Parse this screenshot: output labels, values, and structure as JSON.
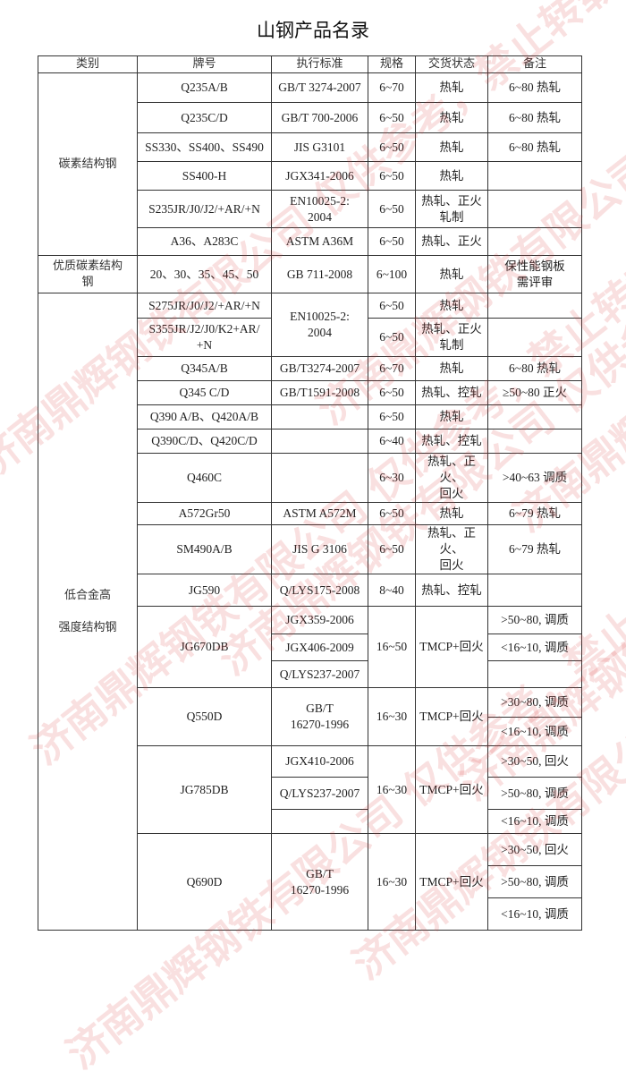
{
  "title": "山钢产品名录",
  "watermark": "济南鼎辉钢铁有限公司 仅供参考，禁止转载！",
  "table": {
    "headers": [
      "类别",
      "牌号",
      "执行标准",
      "规格",
      "交货状态",
      "备注"
    ],
    "rows": [
      [
        {
          "text": "碳素结构钢",
          "rs": 6,
          "cat": true
        },
        {
          "text": "Q235A/B"
        },
        {
          "text": "GB/T 3274-2007"
        },
        {
          "text": "6~70"
        },
        {
          "text": "热轧"
        },
        {
          "text": "6~80 热轧"
        }
      ],
      [
        {
          "text": "Q235C/D"
        },
        {
          "text": "GB/T 700-2006"
        },
        {
          "text": "6~50"
        },
        {
          "text": "热轧"
        },
        {
          "text": "6~80 热轧"
        }
      ],
      [
        {
          "text": "SS330、SS400、SS490"
        },
        {
          "text": "JIS G3101"
        },
        {
          "text": "6~50"
        },
        {
          "text": "热轧"
        },
        {
          "text": "6~80 热轧"
        }
      ],
      [
        {
          "text": "SS400-H"
        },
        {
          "text": "JGX341-2006"
        },
        {
          "text": "6~50"
        },
        {
          "text": "热轧"
        },
        {
          "text": ""
        }
      ],
      [
        {
          "text": "S235JR/J0/J2/+AR/+N"
        },
        {
          "text": "EN10025-2:\n2004"
        },
        {
          "text": "6~50"
        },
        {
          "text": "热轧、正火\n轧制"
        },
        {
          "text": ""
        }
      ],
      [
        {
          "text": "A36、A283C"
        },
        {
          "text": "ASTM A36M"
        },
        {
          "text": "6~50"
        },
        {
          "text": "热轧、正火"
        },
        {
          "text": ""
        }
      ],
      [
        {
          "text": "优质碳素结构\n钢",
          "cat": true
        },
        {
          "text": "20、30、35、45、50"
        },
        {
          "text": "GB 711-2008"
        },
        {
          "text": "6~100"
        },
        {
          "text": "热轧"
        },
        {
          "text": "保性能钢板\n需评审"
        }
      ],
      [
        {
          "text": "低合金高\n\n强度结构钢",
          "rs": 21,
          "cat": true
        },
        {
          "text": "S275JR/J0/J2/+AR/+N"
        },
        {
          "text": "EN10025-2:\n2004",
          "rs": 2
        },
        {
          "text": "6~50"
        },
        {
          "text": "热轧"
        },
        {
          "text": ""
        }
      ],
      [
        {
          "text": "S355JR/J2/J0/K2+AR/\n+N"
        },
        {
          "text": "6~50"
        },
        {
          "text": "热轧、正火\n轧制"
        },
        {
          "text": ""
        }
      ],
      [
        {
          "text": "Q345A/B"
        },
        {
          "text": "GB/T3274-2007"
        },
        {
          "text": "6~70"
        },
        {
          "text": "热轧"
        },
        {
          "text": "6~80 热轧"
        }
      ],
      [
        {
          "text": "Q345 C/D"
        },
        {
          "text": "GB/T1591-2008"
        },
        {
          "text": "6~50"
        },
        {
          "text": "热轧、控轧"
        },
        {
          "text": "≥50~80 正火"
        }
      ],
      [
        {
          "text": "Q390 A/B、Q420A/B"
        },
        {
          "text": ""
        },
        {
          "text": "6~50"
        },
        {
          "text": "热轧"
        },
        {
          "text": ""
        }
      ],
      [
        {
          "text": "Q390C/D、Q420C/D"
        },
        {
          "text": ""
        },
        {
          "text": "6~40"
        },
        {
          "text": "热轧、控轧"
        },
        {
          "text": ""
        }
      ],
      [
        {
          "text": "Q460C"
        },
        {
          "text": ""
        },
        {
          "text": "6~30"
        },
        {
          "text": "热轧、正火、\n回火"
        },
        {
          "text": ">40~63 调质"
        }
      ],
      [
        {
          "text": "A572Gr50"
        },
        {
          "text": "ASTM A572M"
        },
        {
          "text": "6~50"
        },
        {
          "text": "热轧"
        },
        {
          "text": "6~79 热轧"
        }
      ],
      [
        {
          "text": "SM490A/B"
        },
        {
          "text": "JIS G 3106"
        },
        {
          "text": "6~50"
        },
        {
          "text": "热轧、正火、\n回火"
        },
        {
          "text": "6~79 热轧"
        }
      ],
      [
        {
          "text": "JG590"
        },
        {
          "text": "Q/LYS175-2008"
        },
        {
          "text": "8~40"
        },
        {
          "text": "热轧、控轧"
        },
        {
          "text": ""
        }
      ],
      [
        {
          "text": "JG670DB",
          "rs": 3
        },
        {
          "text": "JGX359-2006"
        },
        {
          "text": "16~50",
          "rs": 3
        },
        {
          "text": "TMCP+回火",
          "rs": 3
        },
        {
          "text": ">50~80, 调质"
        }
      ],
      [
        {
          "text": "JGX406-2009"
        },
        {
          "text": "<16~10, 调质"
        }
      ],
      [
        {
          "text": "Q/LYS237-2007"
        },
        {
          "text": ""
        }
      ],
      [
        {
          "text": "Q550D",
          "rs": 2
        },
        {
          "text": "GB/T\n16270-1996",
          "rs": 2
        },
        {
          "text": "16~30",
          "rs": 2
        },
        {
          "text": "TMCP+回火",
          "rs": 2
        },
        {
          "text": ">30~80, 调质"
        }
      ],
      [
        {
          "text": "<16~10, 调质"
        }
      ],
      [
        {
          "text": "JG785DB",
          "rs": 3
        },
        {
          "text": "JGX410-2006"
        },
        {
          "text": "16~30",
          "rs": 3
        },
        {
          "text": "TMCP+回火",
          "rs": 3
        },
        {
          "text": ">30~50, 回火"
        }
      ],
      [
        {
          "text": "Q/LYS237-2007"
        },
        {
          "text": ">50~80, 调质"
        }
      ],
      [
        {
          "text": ""
        },
        {
          "text": "<16~10, 调质"
        }
      ],
      [
        {
          "text": "Q690D",
          "rs": 3
        },
        {
          "text": "GB/T\n16270-1996",
          "rs": 3
        },
        {
          "text": "16~30",
          "rs": 3
        },
        {
          "text": "TMCP+回火",
          "rs": 3
        },
        {
          "text": ">30~50, 回火"
        }
      ],
      [
        {
          "text": ">50~80, 调质"
        }
      ],
      [
        {
          "text": "<16~10, 调质"
        }
      ]
    ]
  }
}
